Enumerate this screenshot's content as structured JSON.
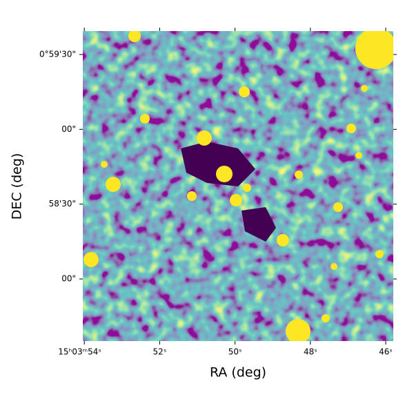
{
  "chart_data": {
    "type": "image",
    "xlabel": "RA (deg)",
    "ylabel": "DEC (deg)",
    "xlim": [
      225.97517,
      225.94083
    ],
    "ylim": [
      0.95975,
      0.994278
    ],
    "xticks": [
      {
        "value": 225.975,
        "label": "15ʰ03ᵐ54ˢ"
      },
      {
        "value": 225.966667,
        "label": "52ˢ"
      },
      {
        "value": 225.958333,
        "label": "50ˢ"
      },
      {
        "value": 225.95,
        "label": "48ˢ"
      },
      {
        "value": 225.941667,
        "label": "46ˢ"
      }
    ],
    "yticks": [
      {
        "value": 0.991667,
        "label": "0°59'30\""
      },
      {
        "value": 0.983333,
        "label": "00\""
      },
      {
        "value": 0.975,
        "label": "58'30\""
      },
      {
        "value": 0.966667,
        "label": "00\""
      }
    ]
  }
}
